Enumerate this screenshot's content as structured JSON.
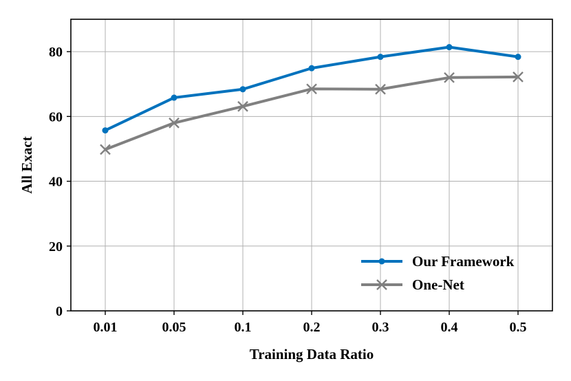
{
  "chart_data": {
    "type": "line",
    "title": "",
    "xlabel": "Training Data Ratio",
    "ylabel": "All Exact",
    "categories": [
      "0.01",
      "0.05",
      "0.1",
      "0.2",
      "0.3",
      "0.4",
      "0.5"
    ],
    "ylim": [
      0,
      90
    ],
    "yticks": [
      0,
      20,
      40,
      60,
      80
    ],
    "grid": true,
    "legend_position": "bottom-right",
    "series": [
      {
        "name": "Our Framework",
        "values": [
          55.7,
          65.8,
          68.4,
          74.9,
          78.4,
          81.4,
          78.4
        ],
        "color": "#0072bd",
        "marker": "circle"
      },
      {
        "name": "One-Net",
        "values": [
          49.8,
          58.0,
          63.1,
          68.5,
          68.4,
          72.0,
          72.2
        ],
        "color": "#808080",
        "marker": "x"
      }
    ]
  }
}
